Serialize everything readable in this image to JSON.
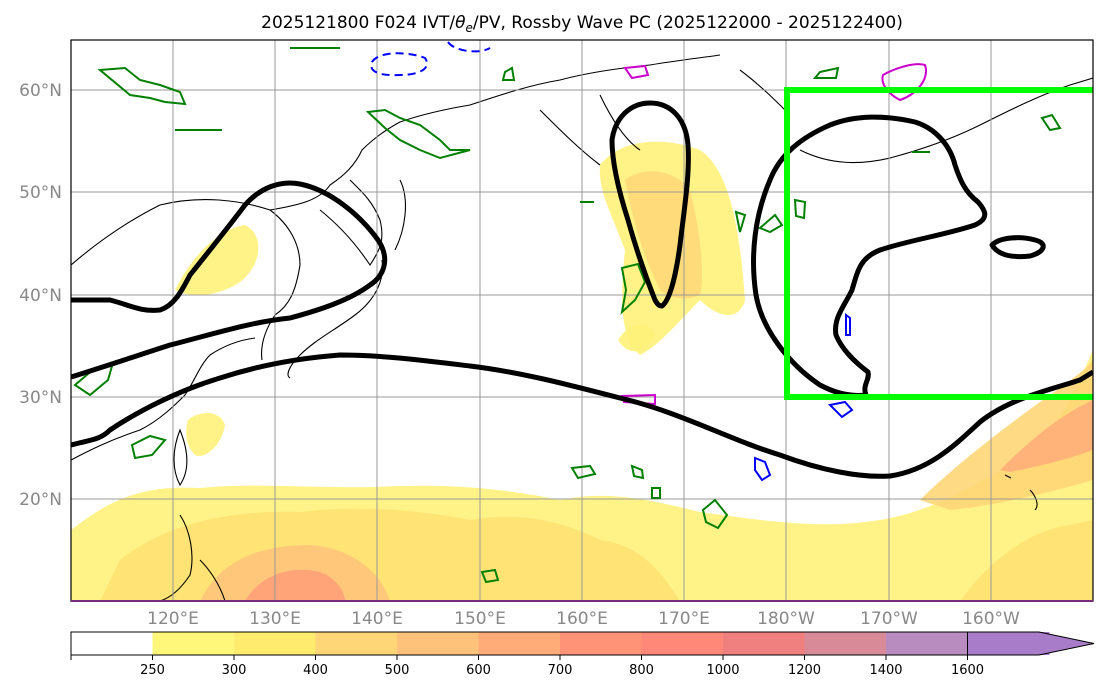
{
  "title": "2025121800 F024 IVT/θe/PV, Rossby Wave PC (2025122000 - 2025122400)",
  "title_parts": {
    "prefix": "2025121800 F024 IVT/",
    "theta": "θ",
    "theta_sub": "e",
    "suffix": "/PV, Rossby Wave PC (2025122000 - 2025122400)"
  },
  "lat_labels": [
    "60°N",
    "50°N",
    "40°N",
    "30°N",
    "20°N"
  ],
  "lon_labels": [
    "120°E",
    "130°E",
    "140°E",
    "150°E",
    "160°E",
    "170°E",
    "180°W",
    "170°W",
    "160°W"
  ],
  "colorbar": {
    "ticks": [
      "250",
      "300",
      "400",
      "500",
      "600",
      "700",
      "800",
      "1000",
      "1200",
      "1400",
      "1600"
    ],
    "colors": [
      "#ffffff",
      "#fff77a",
      "#ffeb6e",
      "#ffd677",
      "#ffc27a",
      "#ffac78",
      "#ff9378",
      "#ff8878",
      "#f08080",
      "#d98a98",
      "#b98cc0",
      "#a87cc8"
    ]
  },
  "colors": {
    "ivt_fill": "#ffe066",
    "pc_contour": "#000000",
    "box": "#00ff00",
    "theta_e": "#008000",
    "pv_neg": "#0000ff",
    "pv_pos": "#cc00cc",
    "grid": "#999999"
  },
  "highlight_box": {
    "lon_range": [
      "180°W",
      "≈152°W"
    ],
    "lat_range": [
      "30°N",
      "60°N"
    ]
  }
}
